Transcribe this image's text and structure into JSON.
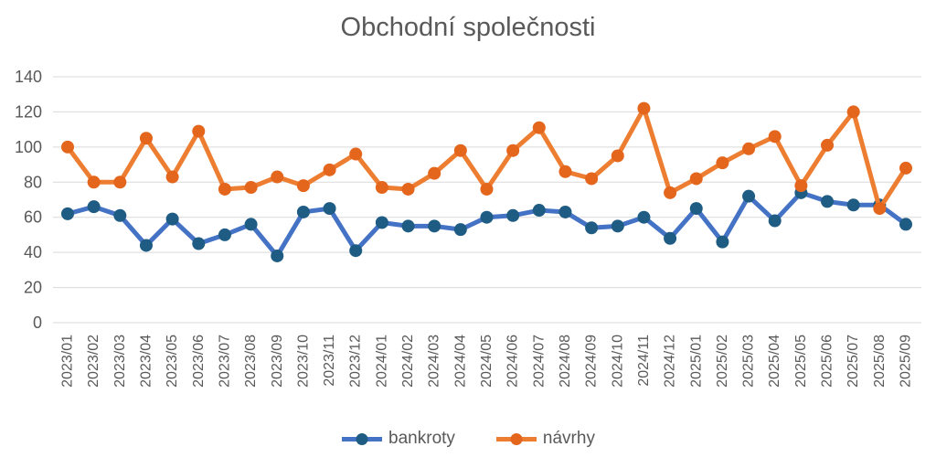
{
  "title": "Obchodní společnosti",
  "colors": {
    "gridline": "#D9D9D9",
    "axis_text": "#595959",
    "title_text": "#595959",
    "background": "#FFFFFF"
  },
  "legend": {
    "items": [
      "bankroty",
      "návrhy"
    ]
  },
  "chart_data": {
    "type": "line",
    "title": "Obchodní společnosti",
    "categories": [
      "2023/01",
      "2023/02",
      "2023/03",
      "2023/04",
      "2023/05",
      "2023/06",
      "2023/07",
      "2023/08",
      "2023/09",
      "2023/10",
      "2023/11",
      "2023/12",
      "2024/01",
      "2024/02",
      "2024/03",
      "2024/04",
      "2024/05",
      "2024/06",
      "2024/07",
      "2024/08",
      "2024/09",
      "2024/10",
      "2024/11",
      "2024/12",
      "2025/01",
      "2025/02",
      "2025/03",
      "2025/04",
      "2025/05",
      "2025/06",
      "2025/07",
      "2025/08",
      "2025/09"
    ],
    "series": [
      {
        "name": "bankroty",
        "line_color": "#4472C4",
        "marker_color": "#1F5C83",
        "values": [
          62,
          66,
          61,
          44,
          59,
          45,
          50,
          56,
          38,
          63,
          65,
          41,
          57,
          55,
          55,
          53,
          60,
          61,
          64,
          63,
          54,
          55,
          60,
          48,
          65,
          46,
          72,
          58,
          74,
          69,
          67,
          67,
          56
        ]
      },
      {
        "name": "návrhy",
        "line_color": "#ED7D31",
        "marker_color": "#E4651C",
        "values": [
          100,
          80,
          80,
          105,
          83,
          109,
          76,
          77,
          83,
          78,
          87,
          96,
          77,
          76,
          85,
          98,
          76,
          98,
          111,
          86,
          82,
          95,
          122,
          74,
          82,
          91,
          99,
          106,
          78,
          101,
          120,
          65,
          88
        ]
      }
    ],
    "y_ticks": [
      0,
      20,
      40,
      60,
      80,
      100,
      120,
      140
    ],
    "ylim": [
      0,
      140
    ],
    "grid": "horizontal-only",
    "legend_position": "bottom",
    "x_label_rotation": -90
  }
}
